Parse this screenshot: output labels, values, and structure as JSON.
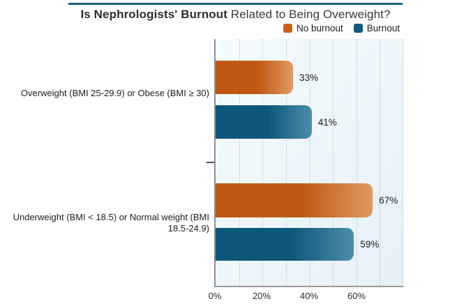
{
  "title": {
    "bold": "Is Nephrologists' Burnout",
    "regular": " Related to Being Overweight?"
  },
  "legend": [
    {
      "label": "No burnout",
      "color": "#c96118"
    },
    {
      "label": "Burnout",
      "color": "#12597c"
    }
  ],
  "chart_data": {
    "type": "bar",
    "orientation": "horizontal",
    "title": "Is Nephrologists' Burnout Related to Being Overweight?",
    "categories": [
      "Overweight (BMI 25-29.9) or Obese (BMI ≥ 30)",
      "Underweight (BMI < 18.5) or Normal weight (BMI 18.5-24.9)"
    ],
    "series": [
      {
        "name": "No burnout",
        "color": "#bf5912",
        "values": [
          33,
          67
        ],
        "labels": [
          "33%",
          "67%"
        ]
      },
      {
        "name": "Burnout",
        "color": "#0d587a",
        "values": [
          41,
          59
        ],
        "labels": [
          "41%",
          "59%"
        ]
      }
    ],
    "xlim": [
      0,
      80
    ],
    "x_ticks": [
      "0%",
      "20%",
      "40%",
      "60%"
    ],
    "grid": "vertical dotted lines every 10%",
    "legend_position": "top-right",
    "plot_background": "#ecf5fa",
    "accent_line_color": "#1a5f7d"
  }
}
